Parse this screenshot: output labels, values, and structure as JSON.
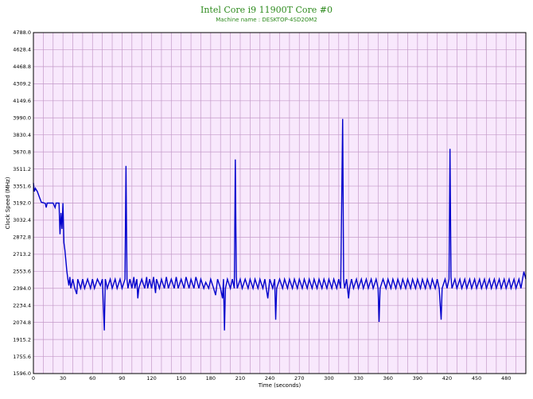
{
  "chart_data": {
    "type": "line",
    "title": "Intel Core i9 11900T Core #0",
    "subtitle": "Machine name : DESKTOP-4SD2OM2",
    "xlabel": "Time (seconds)",
    "ylabel": "Clock Speed (MHz)",
    "xlim": [
      0,
      500
    ],
    "ylim": [
      1596.0,
      4788.0
    ],
    "x_ticks": [
      0,
      30,
      60,
      90,
      120,
      150,
      180,
      210,
      240,
      270,
      300,
      330,
      360,
      390,
      420,
      450,
      480
    ],
    "y_ticks": [
      "1596.0",
      "1755.6",
      "1915.2",
      "2074.8",
      "2234.4",
      "2394.0",
      "2553.6",
      "2713.2",
      "2872.8",
      "3032.4",
      "3192.0",
      "3351.6",
      "3511.2",
      "3670.8",
      "3830.4",
      "3990.0",
      "4149.6",
      "4309.2",
      "4468.8",
      "4628.4",
      "4788.0"
    ],
    "grid": true,
    "colors": {
      "background": "#f8e8fc",
      "grid": "#c49ac9",
      "line": "#0000cc",
      "title": "#2e8b1e"
    },
    "series": [
      {
        "points": [
          [
            0,
            3380
          ],
          [
            1,
            3300
          ],
          [
            2,
            3330
          ],
          [
            4,
            3300
          ],
          [
            6,
            3250
          ],
          [
            8,
            3200
          ],
          [
            10,
            3195
          ],
          [
            12,
            3190
          ],
          [
            13,
            3150
          ],
          [
            14,
            3192
          ],
          [
            20,
            3192
          ],
          [
            22,
            3150
          ],
          [
            23,
            3192
          ],
          [
            26,
            3192
          ],
          [
            27,
            2900
          ],
          [
            28,
            3100
          ],
          [
            29,
            2950
          ],
          [
            30,
            3192
          ],
          [
            31,
            2820
          ],
          [
            32,
            2750
          ],
          [
            33,
            2650
          ],
          [
            34,
            2550
          ],
          [
            35,
            2480
          ],
          [
            36,
            2420
          ],
          [
            37,
            2500
          ],
          [
            38,
            2394
          ],
          [
            40,
            2480
          ],
          [
            42,
            2394
          ],
          [
            44,
            2340
          ],
          [
            45,
            2480
          ],
          [
            48,
            2394
          ],
          [
            50,
            2480
          ],
          [
            52,
            2394
          ],
          [
            55,
            2480
          ],
          [
            58,
            2394
          ],
          [
            60,
            2480
          ],
          [
            62,
            2394
          ],
          [
            65,
            2480
          ],
          [
            68,
            2420
          ],
          [
            70,
            2480
          ],
          [
            72,
            2000
          ],
          [
            73,
            2480
          ],
          [
            75,
            2394
          ],
          [
            78,
            2480
          ],
          [
            80,
            2394
          ],
          [
            83,
            2480
          ],
          [
            85,
            2394
          ],
          [
            88,
            2480
          ],
          [
            90,
            2394
          ],
          [
            93,
            2480
          ],
          [
            94,
            3540
          ],
          [
            95,
            2480
          ],
          [
            96,
            2394
          ],
          [
            98,
            2480
          ],
          [
            100,
            2394
          ],
          [
            102,
            2500
          ],
          [
            103,
            2394
          ],
          [
            105,
            2480
          ],
          [
            106,
            2300
          ],
          [
            107,
            2394
          ],
          [
            110,
            2480
          ],
          [
            113,
            2394
          ],
          [
            115,
            2500
          ],
          [
            116,
            2394
          ],
          [
            118,
            2480
          ],
          [
            120,
            2394
          ],
          [
            122,
            2500
          ],
          [
            124,
            2350
          ],
          [
            125,
            2480
          ],
          [
            128,
            2394
          ],
          [
            130,
            2480
          ],
          [
            133,
            2394
          ],
          [
            135,
            2500
          ],
          [
            137,
            2394
          ],
          [
            140,
            2480
          ],
          [
            143,
            2394
          ],
          [
            145,
            2500
          ],
          [
            147,
            2394
          ],
          [
            150,
            2480
          ],
          [
            153,
            2394
          ],
          [
            155,
            2500
          ],
          [
            158,
            2394
          ],
          [
            160,
            2480
          ],
          [
            163,
            2394
          ],
          [
            165,
            2500
          ],
          [
            168,
            2394
          ],
          [
            170,
            2480
          ],
          [
            173,
            2394
          ],
          [
            175,
            2450
          ],
          [
            178,
            2394
          ],
          [
            180,
            2480
          ],
          [
            183,
            2394
          ],
          [
            185,
            2330
          ],
          [
            187,
            2480
          ],
          [
            190,
            2394
          ],
          [
            192,
            2300
          ],
          [
            193,
            2480
          ],
          [
            194,
            2000
          ],
          [
            195,
            2394
          ],
          [
            197,
            2480
          ],
          [
            200,
            2394
          ],
          [
            202,
            2480
          ],
          [
            204,
            2394
          ],
          [
            205,
            3600
          ],
          [
            206,
            2500
          ],
          [
            207,
            2394
          ],
          [
            210,
            2480
          ],
          [
            212,
            2394
          ],
          [
            215,
            2480
          ],
          [
            218,
            2394
          ],
          [
            220,
            2480
          ],
          [
            223,
            2394
          ],
          [
            225,
            2480
          ],
          [
            228,
            2394
          ],
          [
            230,
            2480
          ],
          [
            233,
            2394
          ],
          [
            235,
            2480
          ],
          [
            238,
            2300
          ],
          [
            239,
            2394
          ],
          [
            240,
            2480
          ],
          [
            243,
            2394
          ],
          [
            245,
            2480
          ],
          [
            246,
            2100
          ],
          [
            247,
            2394
          ],
          [
            250,
            2480
          ],
          [
            253,
            2394
          ],
          [
            255,
            2480
          ],
          [
            258,
            2394
          ],
          [
            260,
            2480
          ],
          [
            263,
            2394
          ],
          [
            265,
            2480
          ],
          [
            268,
            2394
          ],
          [
            270,
            2480
          ],
          [
            273,
            2394
          ],
          [
            275,
            2480
          ],
          [
            278,
            2394
          ],
          [
            280,
            2480
          ],
          [
            283,
            2394
          ],
          [
            285,
            2480
          ],
          [
            288,
            2394
          ],
          [
            290,
            2480
          ],
          [
            293,
            2394
          ],
          [
            295,
            2480
          ],
          [
            298,
            2394
          ],
          [
            300,
            2480
          ],
          [
            303,
            2394
          ],
          [
            305,
            2480
          ],
          [
            308,
            2394
          ],
          [
            310,
            2480
          ],
          [
            312,
            2394
          ],
          [
            314,
            3980
          ],
          [
            315,
            2480
          ],
          [
            316,
            2394
          ],
          [
            318,
            2480
          ],
          [
            320,
            2300
          ],
          [
            321,
            2394
          ],
          [
            323,
            2480
          ],
          [
            325,
            2394
          ],
          [
            328,
            2480
          ],
          [
            330,
            2394
          ],
          [
            333,
            2480
          ],
          [
            335,
            2394
          ],
          [
            338,
            2480
          ],
          [
            340,
            2394
          ],
          [
            343,
            2480
          ],
          [
            345,
            2394
          ],
          [
            348,
            2480
          ],
          [
            350,
            2394
          ],
          [
            351,
            2080
          ],
          [
            352,
            2394
          ],
          [
            355,
            2480
          ],
          [
            358,
            2394
          ],
          [
            360,
            2480
          ],
          [
            363,
            2394
          ],
          [
            365,
            2480
          ],
          [
            368,
            2394
          ],
          [
            370,
            2480
          ],
          [
            373,
            2394
          ],
          [
            375,
            2480
          ],
          [
            378,
            2394
          ],
          [
            380,
            2480
          ],
          [
            383,
            2394
          ],
          [
            385,
            2480
          ],
          [
            388,
            2394
          ],
          [
            390,
            2480
          ],
          [
            393,
            2394
          ],
          [
            395,
            2480
          ],
          [
            398,
            2394
          ],
          [
            400,
            2480
          ],
          [
            403,
            2394
          ],
          [
            405,
            2480
          ],
          [
            408,
            2394
          ],
          [
            410,
            2480
          ],
          [
            412,
            2394
          ],
          [
            414,
            2100
          ],
          [
            415,
            2394
          ],
          [
            418,
            2480
          ],
          [
            420,
            2394
          ],
          [
            422,
            2480
          ],
          [
            423,
            3700
          ],
          [
            424,
            2500
          ],
          [
            425,
            2394
          ],
          [
            428,
            2480
          ],
          [
            430,
            2394
          ],
          [
            433,
            2480
          ],
          [
            435,
            2394
          ],
          [
            438,
            2480
          ],
          [
            440,
            2394
          ],
          [
            443,
            2480
          ],
          [
            445,
            2394
          ],
          [
            448,
            2480
          ],
          [
            450,
            2394
          ],
          [
            453,
            2480
          ],
          [
            455,
            2394
          ],
          [
            458,
            2480
          ],
          [
            460,
            2394
          ],
          [
            463,
            2480
          ],
          [
            465,
            2394
          ],
          [
            468,
            2480
          ],
          [
            470,
            2394
          ],
          [
            473,
            2480
          ],
          [
            475,
            2394
          ],
          [
            478,
            2480
          ],
          [
            480,
            2394
          ],
          [
            483,
            2480
          ],
          [
            485,
            2394
          ],
          [
            488,
            2480
          ],
          [
            490,
            2394
          ],
          [
            493,
            2480
          ],
          [
            495,
            2394
          ],
          [
            498,
            2550
          ],
          [
            500,
            2480
          ]
        ]
      }
    ]
  }
}
